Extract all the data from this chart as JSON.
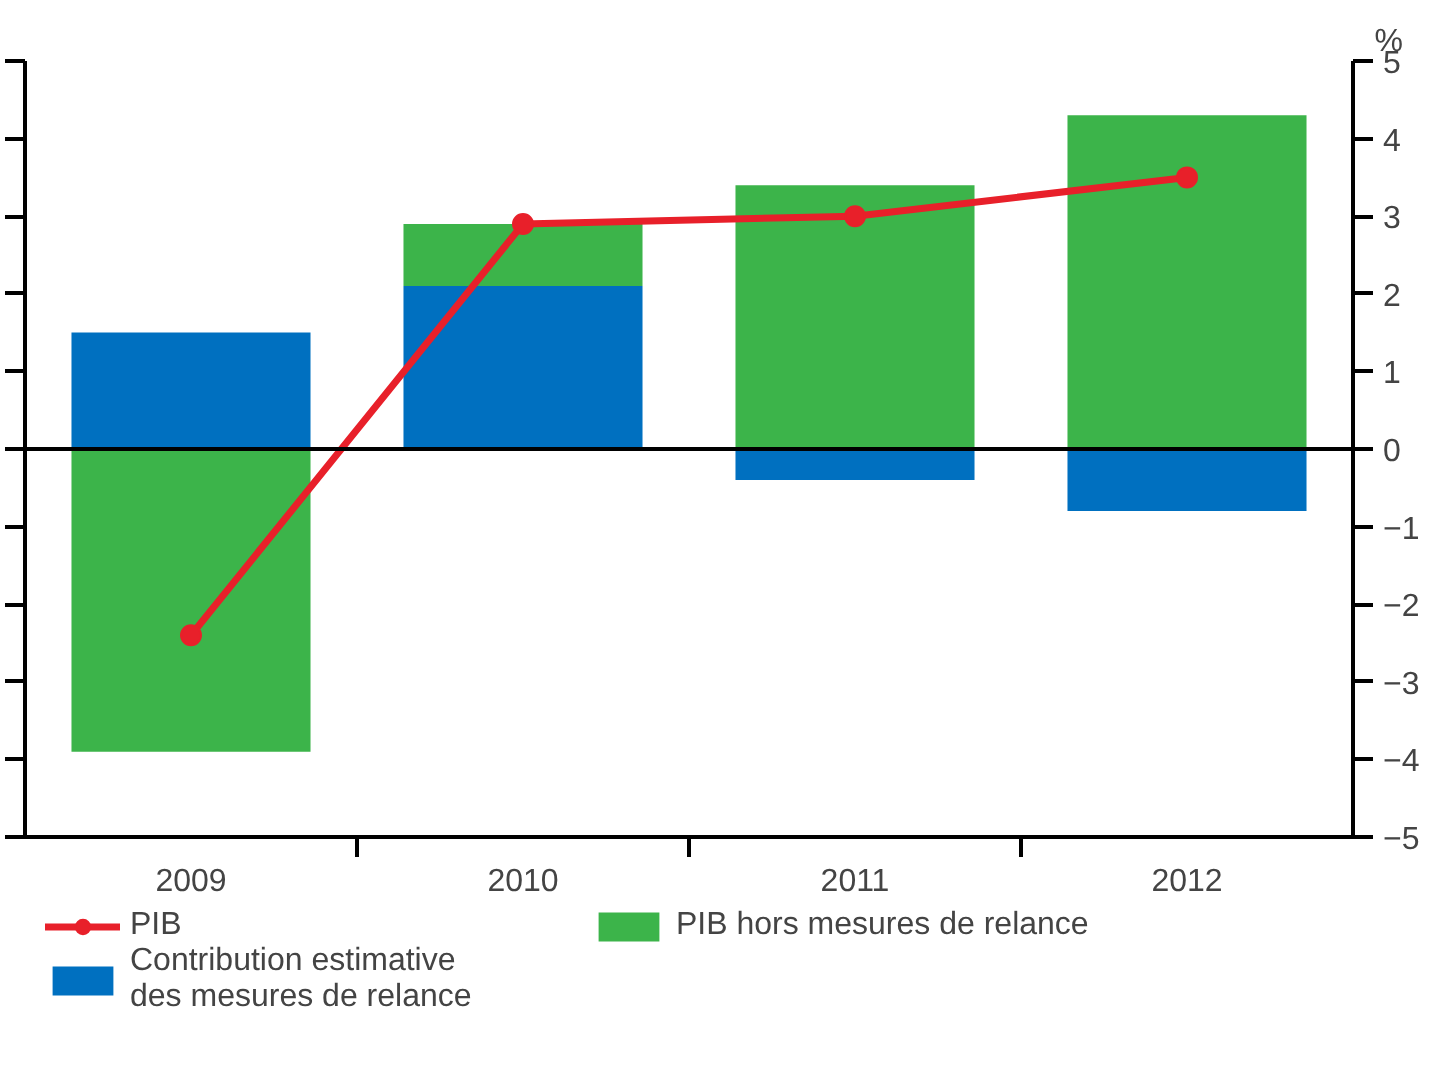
{
  "chart_data": {
    "type": "bar",
    "ylabel": "%",
    "categories": [
      "2009",
      "2010",
      "2011",
      "2012"
    ],
    "stacked": true,
    "series": [
      {
        "name": "Contribution estimative\ndes mesures de relance",
        "color": "#0070c0",
        "values": [
          1.5,
          2.1,
          -0.4,
          -0.8
        ]
      },
      {
        "name": "PIB hors mesures de relance",
        "color": "#3cb44a",
        "values": [
          -3.9,
          0.8,
          3.4,
          4.3
        ]
      },
      {
        "name": "PIB",
        "type": "line",
        "color": "#e8202a",
        "values": [
          -2.4,
          2.9,
          3.0,
          3.5
        ],
        "marker": "circle"
      }
    ],
    "ylim": [
      -5,
      5
    ],
    "yticks": [
      -5,
      -4,
      -3,
      -2,
      -1,
      0,
      1,
      2,
      3,
      4,
      5
    ],
    "ref_lines": [
      {
        "axis": "y",
        "value": 0,
        "color": "#000000"
      }
    ],
    "grid": false,
    "legend": "bottom"
  }
}
